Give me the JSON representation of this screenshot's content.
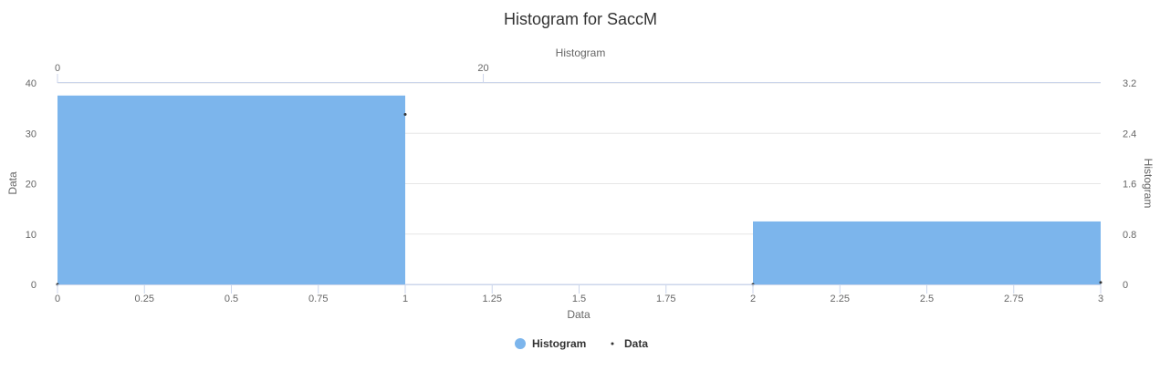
{
  "chart_data": {
    "type": "bar",
    "title": "Histogram for SaccM",
    "xlabel": "Data",
    "ylabel": "Data",
    "y2label": "Histogram",
    "x2label": "Histogram",
    "xlim": [
      0,
      3
    ],
    "ylim": [
      0,
      40
    ],
    "y2lim": [
      0,
      3.2
    ],
    "x2lim": [
      0,
      49
    ],
    "x_ticks": [
      "0",
      "0.25",
      "0.5",
      "0.75",
      "1",
      "1.25",
      "1.5",
      "1.75",
      "2",
      "2.25",
      "2.5",
      "2.75",
      "3"
    ],
    "y_ticks": [
      "0",
      "10",
      "20",
      "30",
      "40"
    ],
    "y2_ticks": [
      "0",
      "0.8",
      "1.6",
      "2.4",
      "3.2"
    ],
    "x2_ticks": [
      "0",
      "20"
    ],
    "series": [
      {
        "name": "Histogram",
        "color": "#7cb5ec",
        "bins": [
          {
            "x0": 0,
            "x1": 1,
            "y2": 3
          },
          {
            "x0": 1,
            "x1": 2,
            "y2": 0
          },
          {
            "x0": 2,
            "x1": 3,
            "y2": 1
          }
        ]
      },
      {
        "name": "Data",
        "color": "#333333",
        "points": [
          {
            "x": 0,
            "y2": 0
          },
          {
            "x": 1,
            "y2": 2.7
          },
          {
            "x": 2,
            "y2": 0
          },
          {
            "x": 3,
            "y2": 0.03
          }
        ]
      }
    ],
    "grid": true,
    "legend_position": "bottom"
  }
}
